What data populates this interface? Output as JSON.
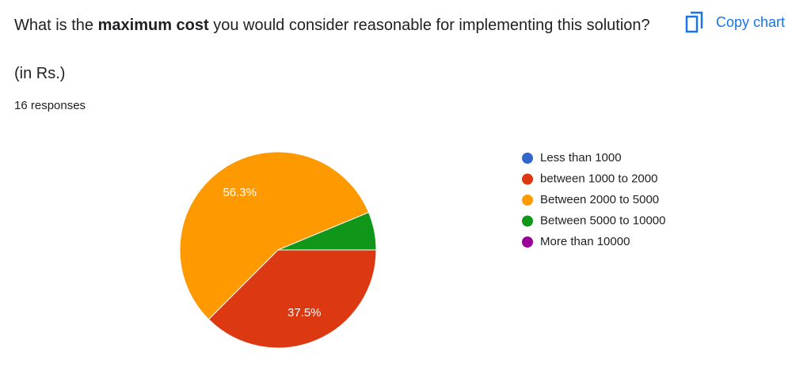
{
  "chart_data": {
    "type": "pie",
    "title": [
      "What is the ",
      "maximum cost",
      " you would consider reasonable for implementing this solution?"
    ],
    "subtitle": "(in Rs.)",
    "responses": "16 responses",
    "action": "Copy chart",
    "categories": [
      "Less than 1000",
      "between 1000 to 2000",
      "Between 2000 to 5000",
      "Between 5000 to 10000",
      "More than 10000"
    ],
    "values": [
      0,
      37.5,
      56.3,
      6.25,
      0
    ],
    "value_labels": [
      null,
      "37.5%",
      "56.3%",
      null,
      null
    ],
    "colors": [
      "#3366cc",
      "#dc3912",
      "#ff9900",
      "#109618",
      "#990099"
    ],
    "legend": "right"
  }
}
